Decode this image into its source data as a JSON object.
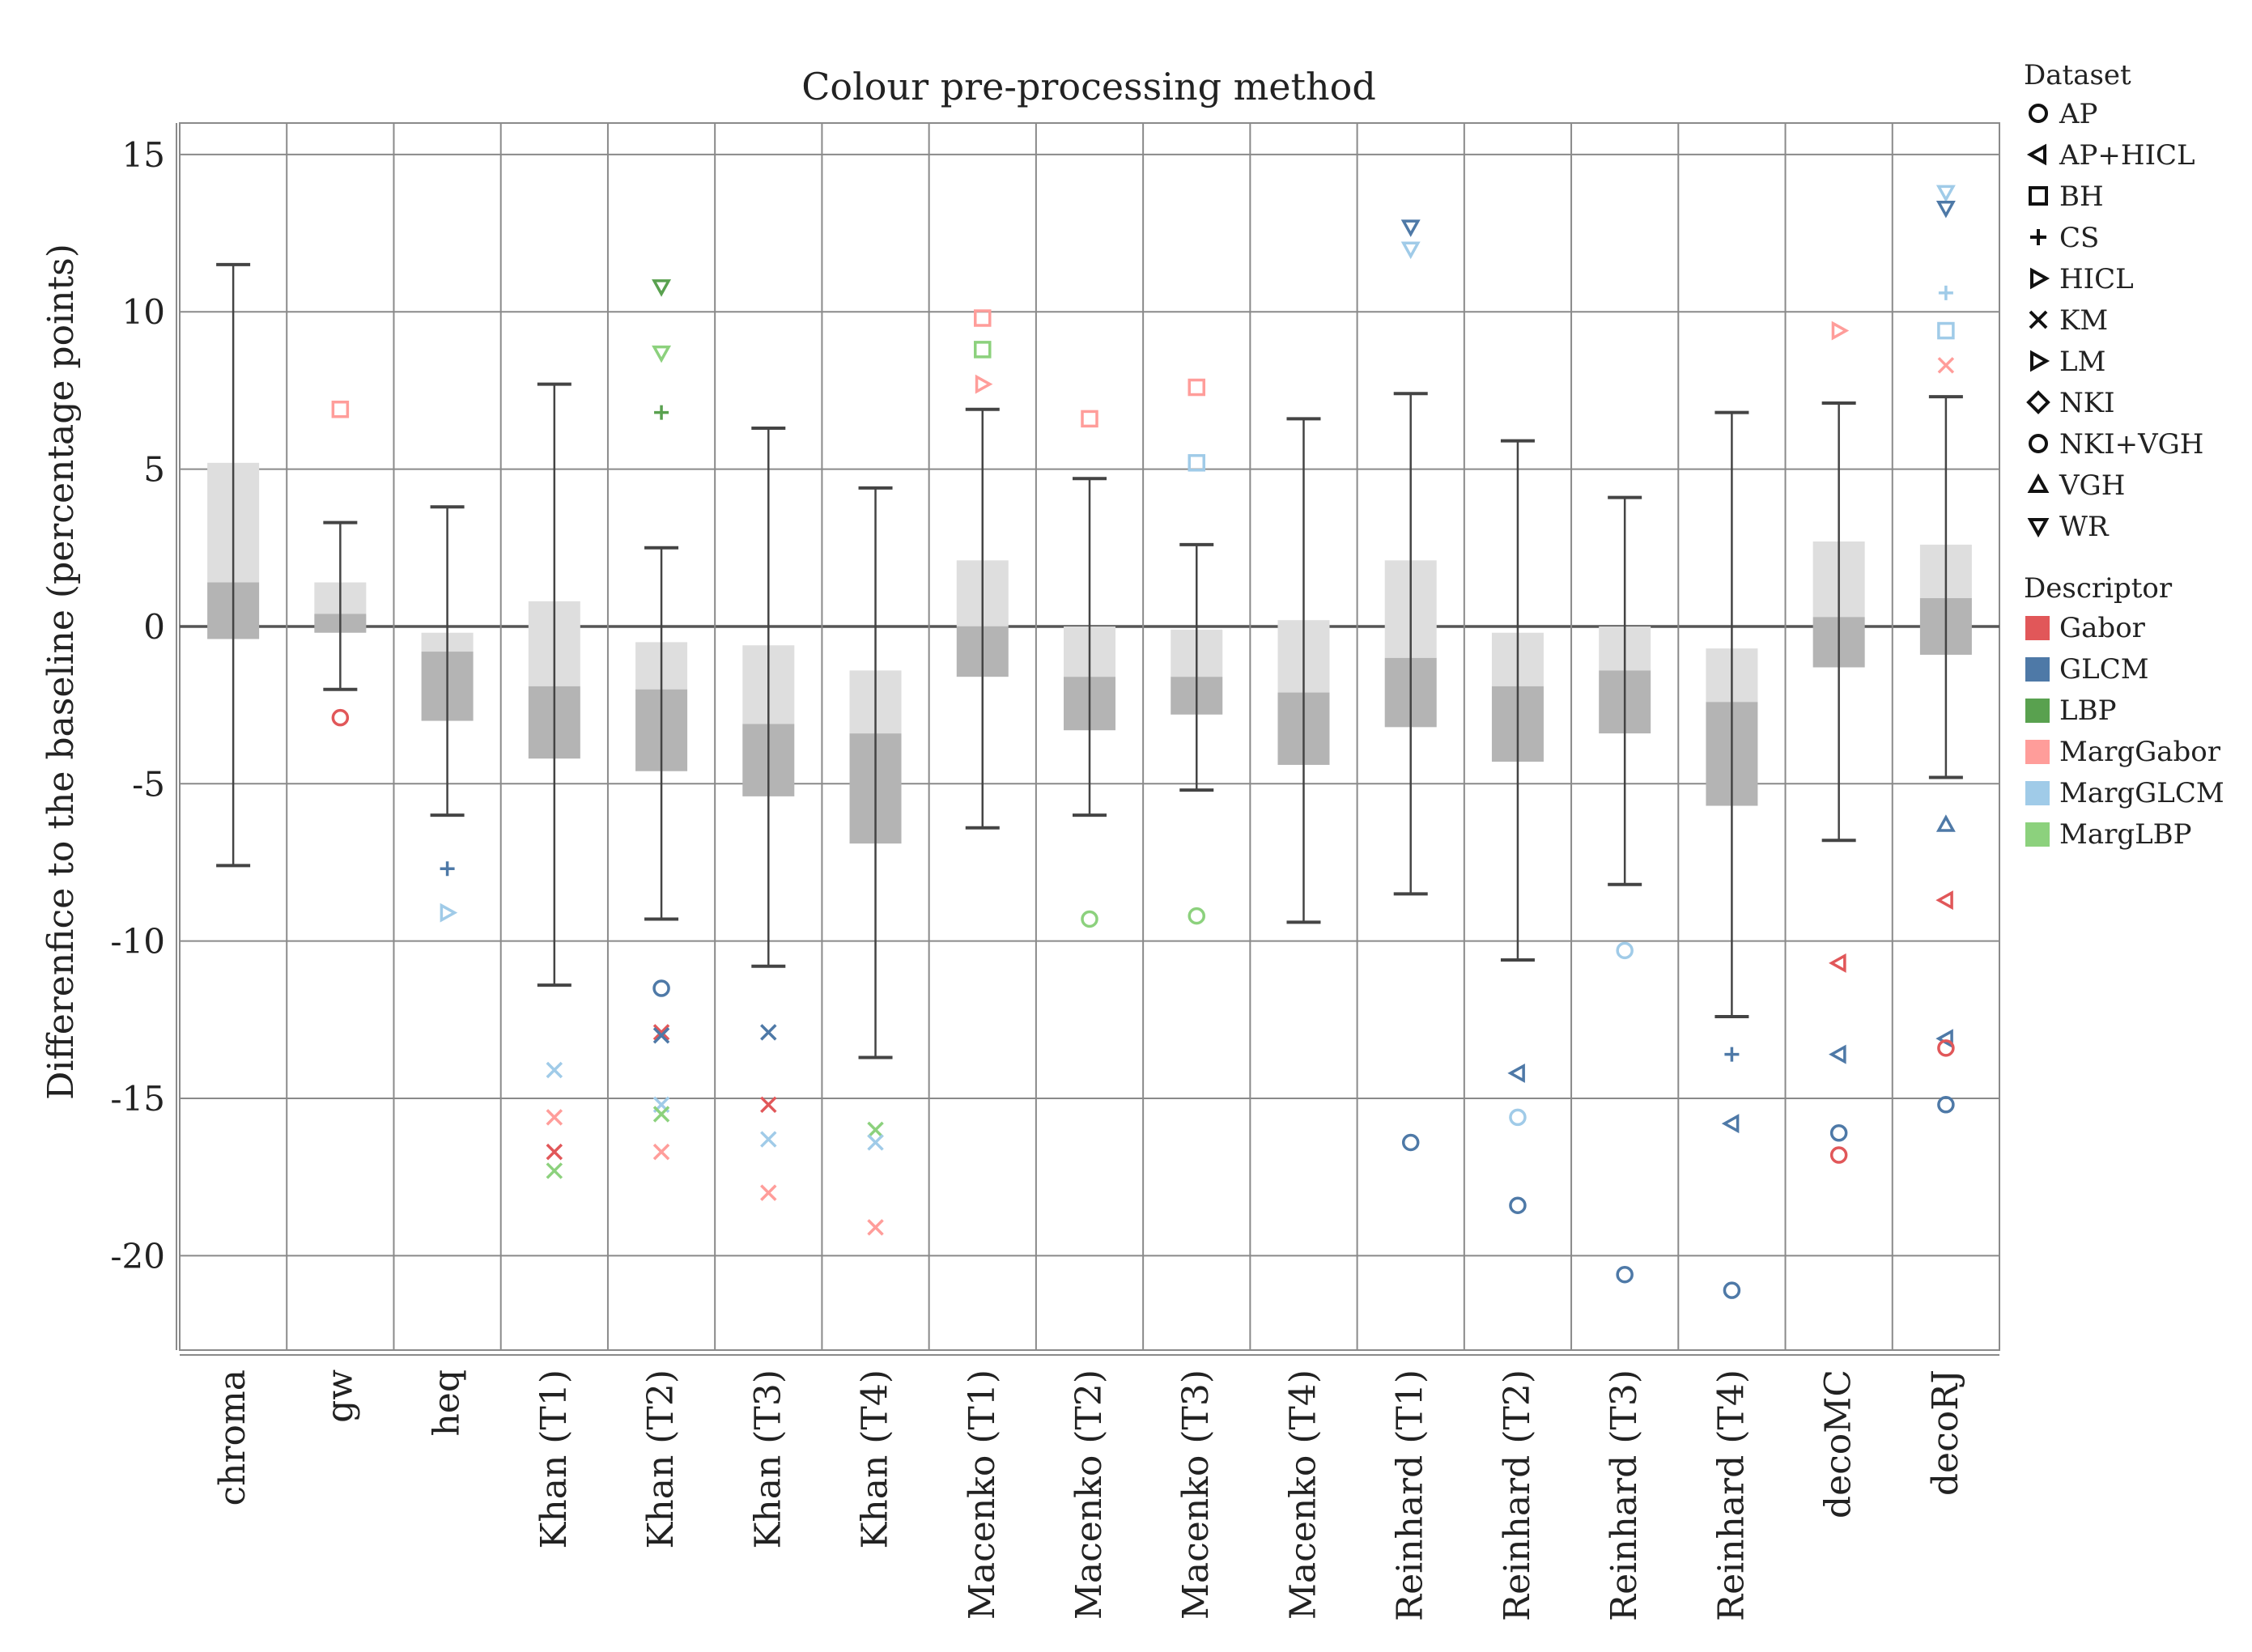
{
  "chart_data": {
    "type": "box",
    "title": "Colour pre-processing method",
    "xlabel": "",
    "ylabel": "Differenfice to the baseline (percentage points)",
    "ylim": [
      -23,
      16
    ],
    "yticks": [
      15,
      10,
      5,
      0,
      -5,
      -10,
      -15,
      -20
    ],
    "categories": [
      "chroma",
      "gw",
      "heq",
      "Khan (T1)",
      "Khan (T2)",
      "Khan (T3)",
      "Khan (T4)",
      "Macenko (T1)",
      "Macenko (T2)",
      "Macenko (T3)",
      "Macenko (T4)",
      "Reinhard (T1)",
      "Reinhard (T2)",
      "Reinhard (T3)",
      "Reinhard (T4)",
      "decoMC",
      "decoRJ"
    ],
    "boxes": [
      {
        "whislo": -7.6,
        "q1": -0.4,
        "med": 1.4,
        "q3": 5.2,
        "whishi": 11.5
      },
      {
        "whislo": -2.0,
        "q1": -0.2,
        "med": 0.4,
        "q3": 1.4,
        "whishi": 3.3
      },
      {
        "whislo": -6.0,
        "q1": -3.0,
        "med": -0.8,
        "q3": -0.2,
        "whishi": 3.8
      },
      {
        "whislo": -11.4,
        "q1": -4.2,
        "med": -1.9,
        "q3": 0.8,
        "whishi": 7.7
      },
      {
        "whislo": -9.3,
        "q1": -4.6,
        "med": -2.0,
        "q3": -0.5,
        "whishi": 2.5
      },
      {
        "whislo": -10.8,
        "q1": -5.4,
        "med": -3.1,
        "q3": -0.6,
        "whishi": 6.3
      },
      {
        "whislo": -13.7,
        "q1": -6.9,
        "med": -3.4,
        "q3": -1.4,
        "whishi": 4.4
      },
      {
        "whislo": -6.4,
        "q1": -1.6,
        "med": 0.0,
        "q3": 2.1,
        "whishi": 6.9
      },
      {
        "whislo": -6.0,
        "q1": -3.3,
        "med": -1.6,
        "q3": 0.0,
        "whishi": 4.7
      },
      {
        "whislo": -5.2,
        "q1": -2.8,
        "med": -1.6,
        "q3": -0.1,
        "whishi": 2.6
      },
      {
        "whislo": -9.4,
        "q1": -4.4,
        "med": -2.1,
        "q3": 0.2,
        "whishi": 6.6
      },
      {
        "whislo": -8.5,
        "q1": -3.2,
        "med": -1.0,
        "q3": 2.1,
        "whishi": 7.4
      },
      {
        "whislo": -10.6,
        "q1": -4.3,
        "med": -1.9,
        "q3": -0.2,
        "whishi": 5.9
      },
      {
        "whislo": -8.2,
        "q1": -3.4,
        "med": -1.4,
        "q3": 0.0,
        "whishi": 4.1
      },
      {
        "whislo": -12.4,
        "q1": -5.7,
        "med": -2.4,
        "q3": -0.7,
        "whishi": 6.8
      },
      {
        "whislo": -6.8,
        "q1": -1.3,
        "med": 0.3,
        "q3": 2.7,
        "whishi": 7.1
      },
      {
        "whislo": -4.8,
        "q1": -0.9,
        "med": 0.9,
        "q3": 2.6,
        "whishi": 7.3
      }
    ],
    "outliers": [
      {
        "cat": 1,
        "value": 6.9,
        "marker": "BH",
        "desc": "MargGabor"
      },
      {
        "cat": 1,
        "value": -2.9,
        "marker": "AP",
        "desc": "Gabor"
      },
      {
        "cat": 2,
        "value": -7.7,
        "marker": "CS",
        "desc": "GLCM"
      },
      {
        "cat": 2,
        "value": -9.1,
        "marker": "HICL",
        "desc": "MargGLCM"
      },
      {
        "cat": 3,
        "value": -14.1,
        "marker": "KM",
        "desc": "MargGLCM"
      },
      {
        "cat": 3,
        "value": -15.6,
        "marker": "KM",
        "desc": "MargGabor"
      },
      {
        "cat": 3,
        "value": -16.7,
        "marker": "KM",
        "desc": "Gabor"
      },
      {
        "cat": 3,
        "value": -17.3,
        "marker": "KM",
        "desc": "MargLBP"
      },
      {
        "cat": 4,
        "value": 10.8,
        "marker": "WR",
        "desc": "LBP"
      },
      {
        "cat": 4,
        "value": 8.7,
        "marker": "WR",
        "desc": "MargLBP"
      },
      {
        "cat": 4,
        "value": 6.8,
        "marker": "CS",
        "desc": "LBP"
      },
      {
        "cat": 4,
        "value": -11.5,
        "marker": "AP",
        "desc": "GLCM"
      },
      {
        "cat": 4,
        "value": -12.9,
        "marker": "KM",
        "desc": "Gabor"
      },
      {
        "cat": 4,
        "value": -13.0,
        "marker": "KM",
        "desc": "GLCM"
      },
      {
        "cat": 4,
        "value": -15.2,
        "marker": "KM",
        "desc": "MargGLCM"
      },
      {
        "cat": 4,
        "value": -15.5,
        "marker": "KM",
        "desc": "MargLBP"
      },
      {
        "cat": 4,
        "value": -16.7,
        "marker": "KM",
        "desc": "MargGabor"
      },
      {
        "cat": 5,
        "value": -12.9,
        "marker": "KM",
        "desc": "GLCM"
      },
      {
        "cat": 5,
        "value": -15.2,
        "marker": "KM",
        "desc": "Gabor"
      },
      {
        "cat": 5,
        "value": -16.3,
        "marker": "KM",
        "desc": "MargGLCM"
      },
      {
        "cat": 5,
        "value": -18.0,
        "marker": "KM",
        "desc": "MargGabor"
      },
      {
        "cat": 6,
        "value": -16.0,
        "marker": "KM",
        "desc": "MargLBP"
      },
      {
        "cat": 6,
        "value": -16.4,
        "marker": "KM",
        "desc": "MargGLCM"
      },
      {
        "cat": 6,
        "value": -19.1,
        "marker": "KM",
        "desc": "MargGabor"
      },
      {
        "cat": 7,
        "value": 9.8,
        "marker": "BH",
        "desc": "MargGabor"
      },
      {
        "cat": 7,
        "value": 8.8,
        "marker": "BH",
        "desc": "MargLBP"
      },
      {
        "cat": 7,
        "value": 7.7,
        "marker": "HICL",
        "desc": "MargGabor"
      },
      {
        "cat": 8,
        "value": 6.6,
        "marker": "BH",
        "desc": "MargGabor"
      },
      {
        "cat": 8,
        "value": -9.3,
        "marker": "AP",
        "desc": "MargLBP"
      },
      {
        "cat": 9,
        "value": 7.6,
        "marker": "BH",
        "desc": "MargGabor"
      },
      {
        "cat": 9,
        "value": 5.2,
        "marker": "BH",
        "desc": "MargGLCM"
      },
      {
        "cat": 9,
        "value": -9.2,
        "marker": "AP",
        "desc": "MargLBP"
      },
      {
        "cat": 11,
        "value": 12.7,
        "marker": "WR",
        "desc": "GLCM"
      },
      {
        "cat": 11,
        "value": 12.0,
        "marker": "WR",
        "desc": "MargGLCM"
      },
      {
        "cat": 11,
        "value": -16.4,
        "marker": "AP",
        "desc": "GLCM"
      },
      {
        "cat": 12,
        "value": -14.2,
        "marker": "AP+HICL",
        "desc": "GLCM"
      },
      {
        "cat": 12,
        "value": -15.6,
        "marker": "AP",
        "desc": "MargGLCM"
      },
      {
        "cat": 12,
        "value": -18.4,
        "marker": "AP",
        "desc": "GLCM"
      },
      {
        "cat": 13,
        "value": -10.3,
        "marker": "AP",
        "desc": "MargGLCM"
      },
      {
        "cat": 13,
        "value": -20.6,
        "marker": "AP",
        "desc": "GLCM"
      },
      {
        "cat": 14,
        "value": -13.6,
        "marker": "CS",
        "desc": "GLCM"
      },
      {
        "cat": 14,
        "value": -15.8,
        "marker": "AP+HICL",
        "desc": "GLCM"
      },
      {
        "cat": 14,
        "value": -21.1,
        "marker": "AP",
        "desc": "GLCM"
      },
      {
        "cat": 15,
        "value": 9.4,
        "marker": "HICL",
        "desc": "MargGabor"
      },
      {
        "cat": 15,
        "value": -10.7,
        "marker": "AP+HICL",
        "desc": "Gabor"
      },
      {
        "cat": 15,
        "value": -13.6,
        "marker": "AP+HICL",
        "desc": "GLCM"
      },
      {
        "cat": 15,
        "value": -16.1,
        "marker": "AP",
        "desc": "GLCM"
      },
      {
        "cat": 15,
        "value": -16.8,
        "marker": "AP",
        "desc": "Gabor"
      },
      {
        "cat": 16,
        "value": 13.8,
        "marker": "WR",
        "desc": "MargGLCM"
      },
      {
        "cat": 16,
        "value": 13.3,
        "marker": "WR",
        "desc": "GLCM"
      },
      {
        "cat": 16,
        "value": 10.6,
        "marker": "CS",
        "desc": "MargGLCM"
      },
      {
        "cat": 16,
        "value": 9.4,
        "marker": "BH",
        "desc": "MargGLCM"
      },
      {
        "cat": 16,
        "value": 8.3,
        "marker": "KM",
        "desc": "MargGabor"
      },
      {
        "cat": 16,
        "value": -6.3,
        "marker": "VGH",
        "desc": "GLCM"
      },
      {
        "cat": 16,
        "value": -8.7,
        "marker": "AP+HICL",
        "desc": "Gabor"
      },
      {
        "cat": 16,
        "value": -13.1,
        "marker": "AP+HICL",
        "desc": "GLCM"
      },
      {
        "cat": 16,
        "value": -13.4,
        "marker": "AP",
        "desc": "Gabor"
      },
      {
        "cat": 16,
        "value": -15.2,
        "marker": "AP",
        "desc": "GLCM"
      }
    ],
    "legend": {
      "position": "right",
      "dataset_title": "Dataset",
      "datasets": [
        {
          "label": "AP",
          "marker": "circle"
        },
        {
          "label": "AP+HICL",
          "marker": "triangle-left"
        },
        {
          "label": "BH",
          "marker": "square"
        },
        {
          "label": "CS",
          "marker": "plus"
        },
        {
          "label": "HICL",
          "marker": "triangle-right"
        },
        {
          "label": "KM",
          "marker": "x"
        },
        {
          "label": "LM",
          "marker": "triangle-right"
        },
        {
          "label": "NKI",
          "marker": "diamond"
        },
        {
          "label": "NKI+VGH",
          "marker": "circle"
        },
        {
          "label": "VGH",
          "marker": "triangle-up"
        },
        {
          "label": "WR",
          "marker": "triangle-down"
        }
      ],
      "descriptor_title": "Descriptor",
      "descriptors": [
        {
          "label": "Gabor",
          "color": "#e15759"
        },
        {
          "label": "GLCM",
          "color": "#4e79a7"
        },
        {
          "label": "LBP",
          "color": "#59a14f"
        },
        {
          "label": "MargGabor",
          "color": "#ff9d9a"
        },
        {
          "label": "MargGLCM",
          "color": "#a0cbe8"
        },
        {
          "label": "MargLBP",
          "color": "#8cd17d"
        }
      ]
    }
  }
}
